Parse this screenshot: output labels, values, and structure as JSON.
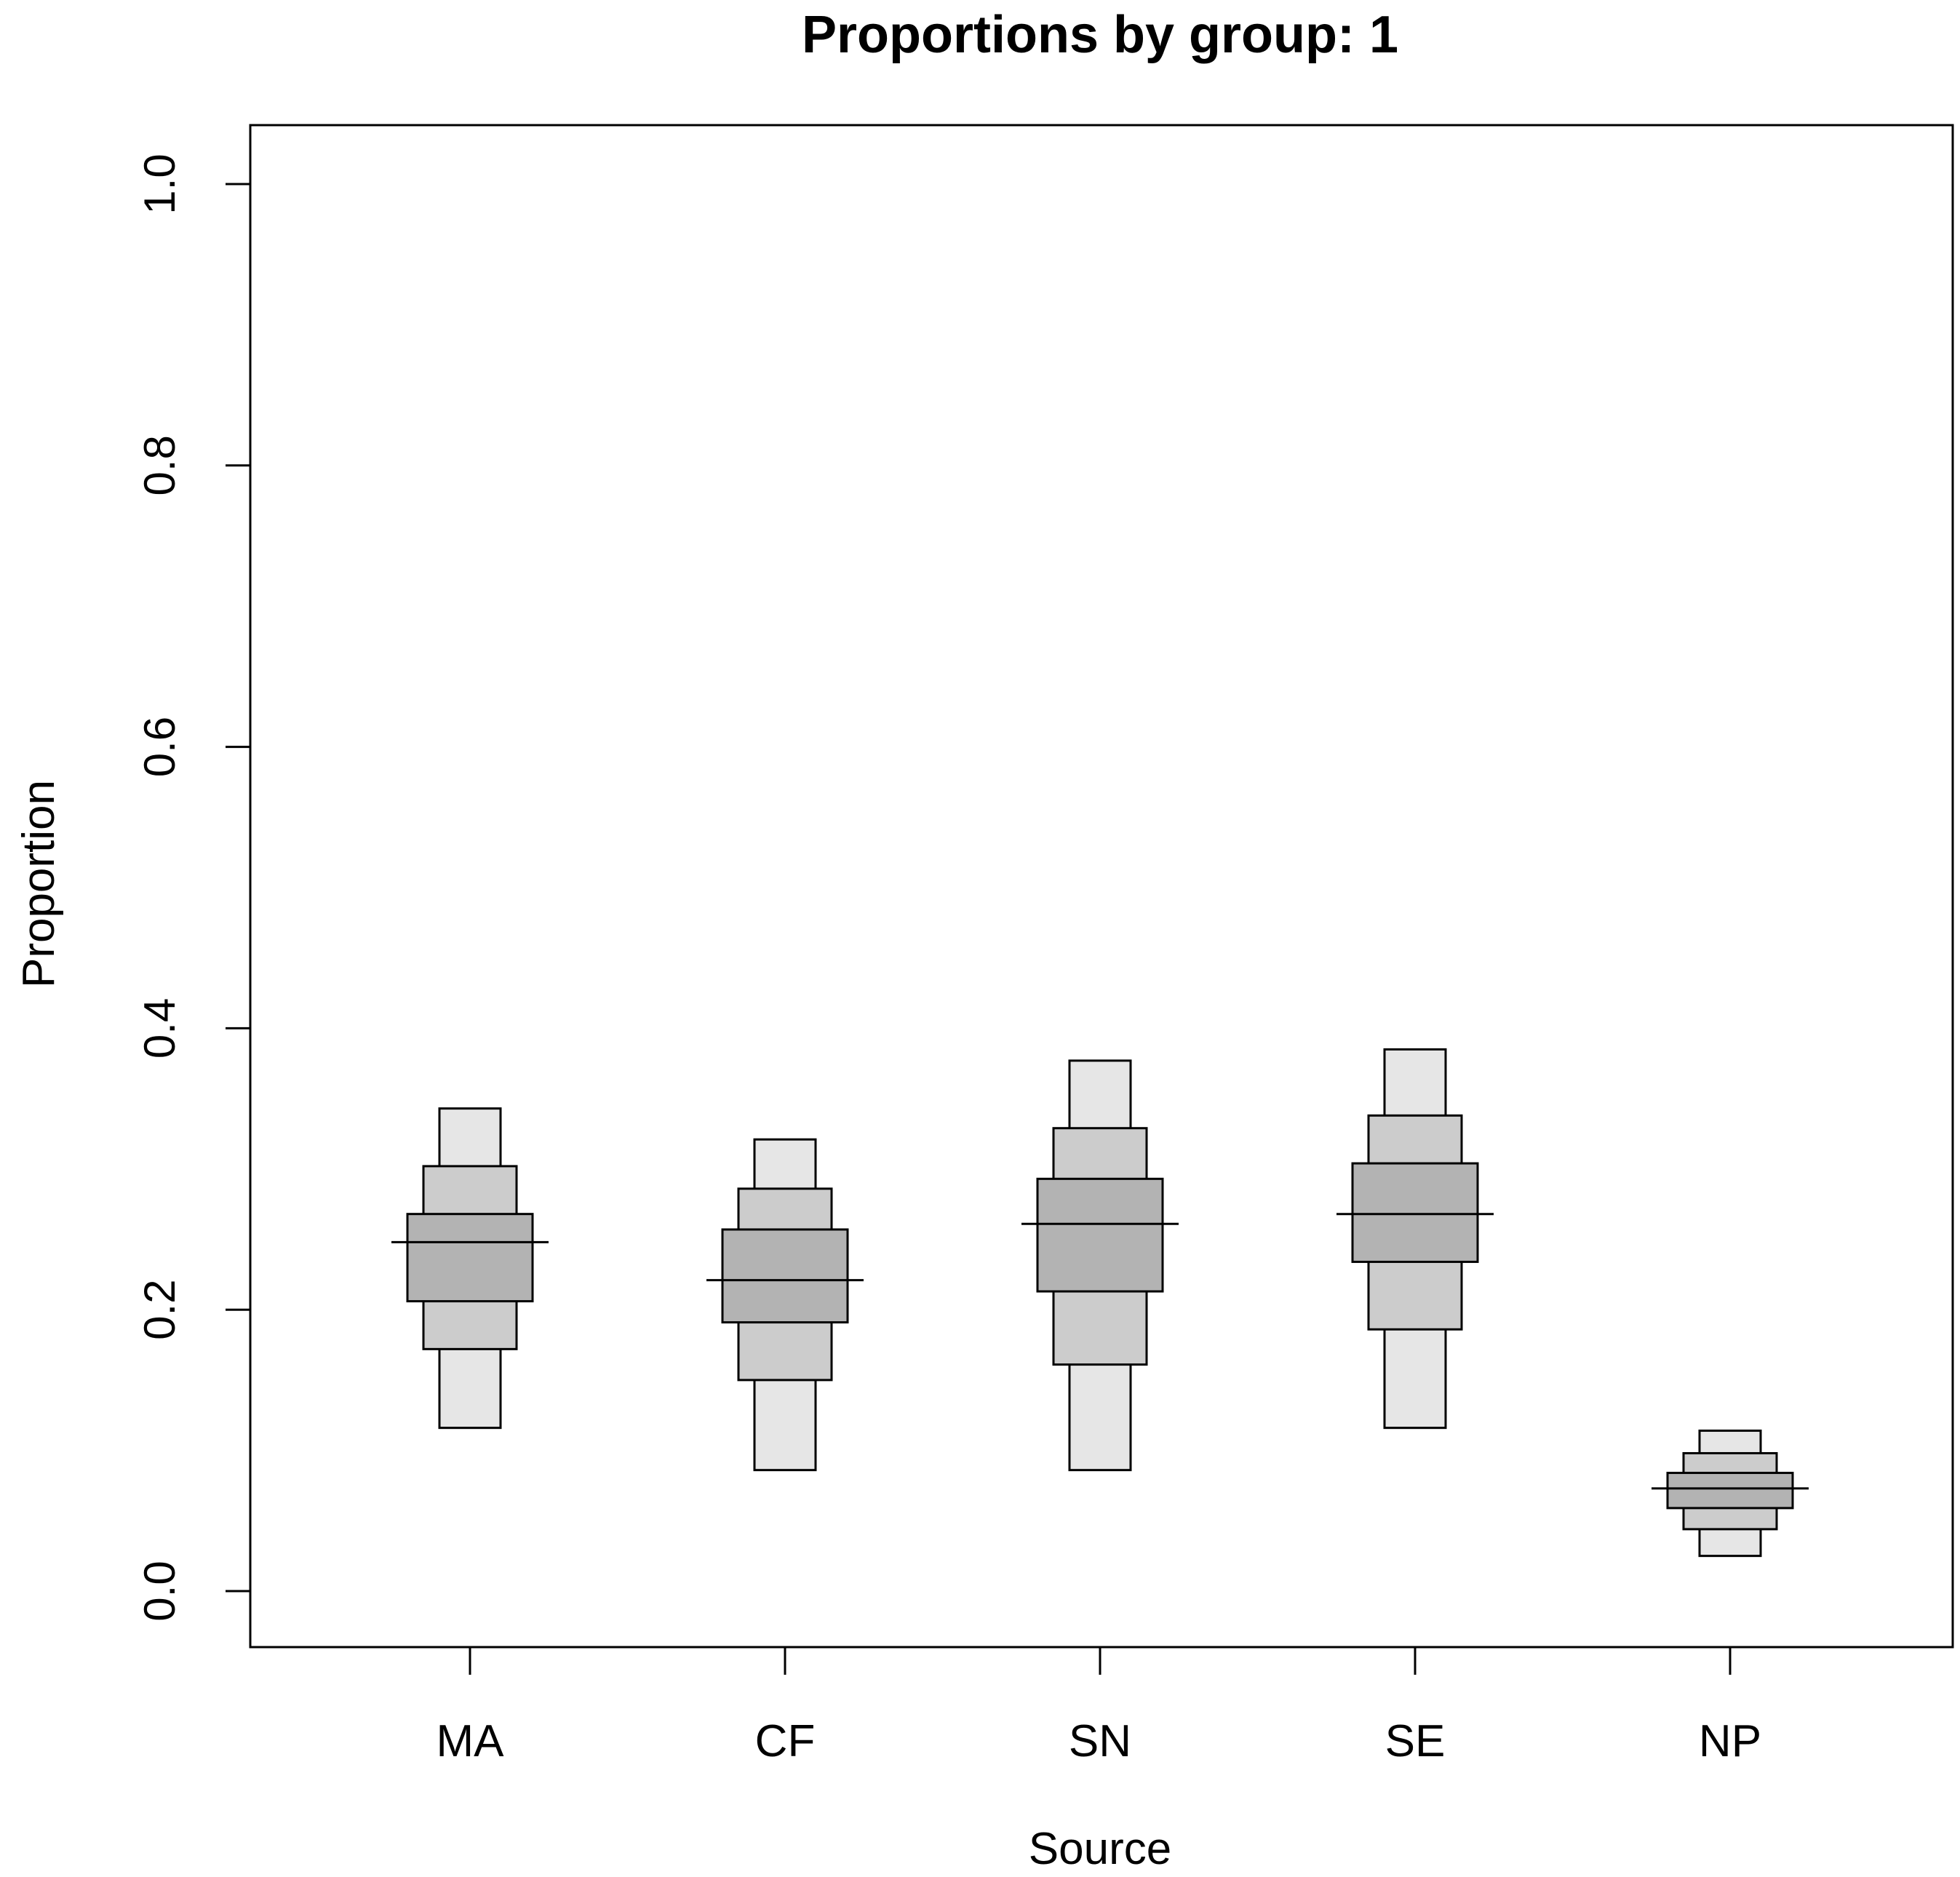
{
  "chart_data": {
    "type": "boxplot-intervals",
    "title": "Proportions by group: 1",
    "xlabel": "Source",
    "ylabel": "Proportion",
    "ylim": [
      0.0,
      1.0
    ],
    "yticks": [
      "0.0",
      "0.2",
      "0.4",
      "0.6",
      "0.8",
      "1.0"
    ],
    "ytick_values": [
      0.0,
      0.2,
      0.4,
      0.6,
      0.8,
      1.0
    ],
    "categories": [
      "MA",
      "CF",
      "SN",
      "SE",
      "NP"
    ],
    "series": [
      {
        "name": "MA",
        "outer": [
          0.116,
          0.343
        ],
        "middle": [
          0.172,
          0.302
        ],
        "inner": [
          0.206,
          0.268
        ],
        "median": 0.248
      },
      {
        "name": "CF",
        "outer": [
          0.086,
          0.321
        ],
        "middle": [
          0.15,
          0.286
        ],
        "inner": [
          0.191,
          0.257
        ],
        "median": 0.221
      },
      {
        "name": "SN",
        "outer": [
          0.086,
          0.377
        ],
        "middle": [
          0.161,
          0.329
        ],
        "inner": [
          0.213,
          0.293
        ],
        "median": 0.261
      },
      {
        "name": "SE",
        "outer": [
          0.116,
          0.385
        ],
        "middle": [
          0.186,
          0.338
        ],
        "inner": [
          0.234,
          0.304
        ],
        "median": 0.268
      },
      {
        "name": "NP",
        "outer": [
          0.025,
          0.114
        ],
        "middle": [
          0.044,
          0.098
        ],
        "inner": [
          0.059,
          0.084
        ],
        "median": 0.073
      }
    ],
    "colors": {
      "outer": "#e6e6e6",
      "middle": "#cccccc",
      "inner": "#b3b3b3"
    }
  }
}
